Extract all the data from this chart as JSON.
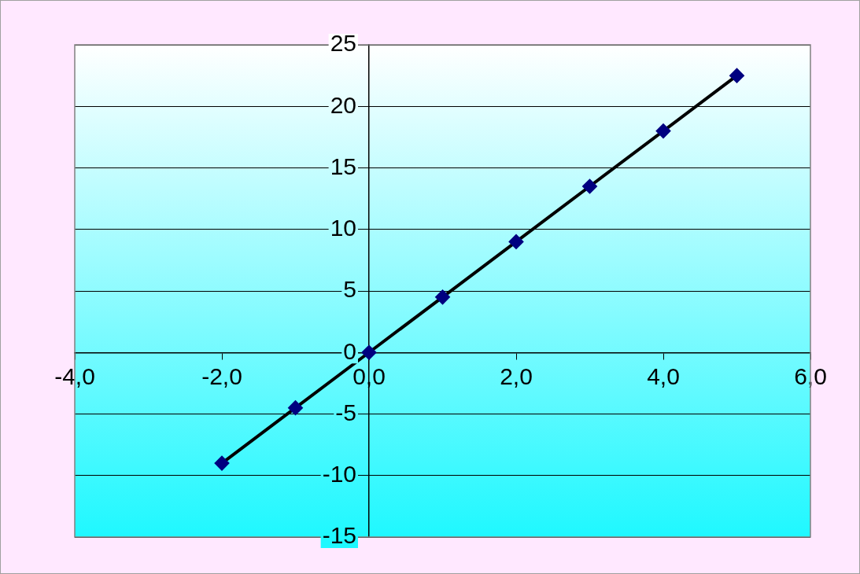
{
  "chart_data": {
    "type": "line",
    "x": [
      -2,
      -1,
      0,
      1,
      2,
      3,
      4,
      5
    ],
    "series": [
      {
        "color": "#000000",
        "values": [
          -9,
          -4.5,
          0,
          4.5,
          9,
          13.5,
          18,
          22.5
        ]
      }
    ],
    "xlim": [
      -4,
      6
    ],
    "xticks": [
      {
        "value": -4,
        "label": "-4,0"
      },
      {
        "value": -2,
        "label": "-2,0"
      },
      {
        "value": 0,
        "label": "0,0"
      },
      {
        "value": 2,
        "label": "2,0"
      },
      {
        "value": 4,
        "label": "4,0"
      },
      {
        "value": 6,
        "label": "6,0"
      }
    ],
    "ylim": [
      -15,
      25
    ],
    "yticks": [
      -15,
      -10,
      -5,
      0,
      5,
      10,
      15,
      20,
      25
    ],
    "grid": "y",
    "marker": "diamond",
    "line_style": "solid"
  }
}
